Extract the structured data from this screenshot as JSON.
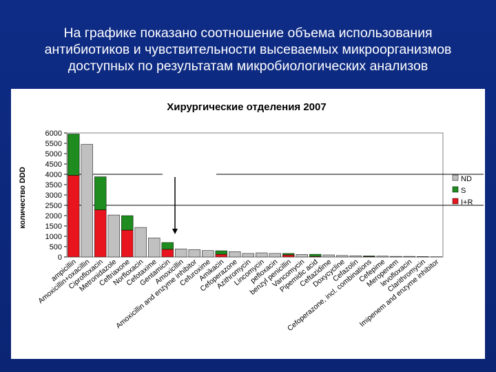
{
  "slide": {
    "title_lines": [
      "На графике показано соотношение объема использования",
      "антибиотиков и чувствительности высеваемых микроорганизмов",
      "доступных по результатам микробиологических анализов"
    ]
  },
  "colors": {
    "background": "#0d2a80",
    "nd": "#c0c0c0",
    "s": "#1e8c1e",
    "ir": "#e8141e"
  },
  "chart_data": {
    "type": "bar",
    "stacked": true,
    "title": "Хирургические отделения 2007",
    "xlabel": "",
    "ylabel": "количество DDD",
    "ylim": [
      0,
      6000
    ],
    "yticks": [
      0,
      500,
      1000,
      1500,
      2000,
      2500,
      3000,
      3500,
      4000,
      4500,
      5000,
      5500,
      6000
    ],
    "grid": false,
    "reference_lines": [
      4000,
      2500
    ],
    "legend": {
      "placement": "right",
      "entries": [
        "ND",
        "S",
        "I+R"
      ]
    },
    "annotations": [
      "arrow pointing down to the Amoxicillin and enzyme inhibitor bar"
    ],
    "categories": [
      "ampicillin",
      "Amoxicillin+oxacillin",
      "Ciprofloxacin",
      "Metronidazole",
      "Ceftriaxone",
      "Norfloxacin",
      "Cefotaxime",
      "Gentamicin",
      "Amoxicillin",
      "Amoxicillin and enzyme inhibitor",
      "Cefuroxime",
      "Amikacin",
      "Cefoperazone",
      "Azithromycin",
      "Lincomycin",
      "pefloxacin",
      "benzyl penicillin",
      "Vancomycin",
      "Pipemidic acid",
      "Ceftazidime",
      "Doxycycline",
      "Cefazolin",
      "Cefoperazone, incl. combinations",
      "Cefepime",
      "Meropenem",
      "levofloxacin",
      "Clarithromycin",
      "Imipenem and enzyme inhibitor"
    ],
    "series": [
      {
        "name": "ND",
        "values": [
          0,
          5450,
          0,
          2030,
          0,
          1430,
          920,
          0,
          390,
          360,
          310,
          0,
          260,
          170,
          200,
          170,
          0,
          120,
          0,
          100,
          70,
          60,
          0,
          40,
          30,
          30,
          20,
          10
        ]
      },
      {
        "name": "S",
        "values": [
          2000,
          0,
          1600,
          0,
          700,
          0,
          0,
          330,
          0,
          0,
          0,
          170,
          0,
          0,
          0,
          0,
          70,
          0,
          100,
          0,
          0,
          0,
          30,
          0,
          0,
          0,
          0,
          0
        ]
      },
      {
        "name": "I+R",
        "values": [
          3950,
          0,
          2280,
          0,
          1300,
          0,
          0,
          370,
          0,
          0,
          0,
          130,
          0,
          0,
          0,
          0,
          100,
          0,
          30,
          0,
          0,
          0,
          20,
          0,
          0,
          0,
          0,
          0
        ]
      }
    ]
  }
}
